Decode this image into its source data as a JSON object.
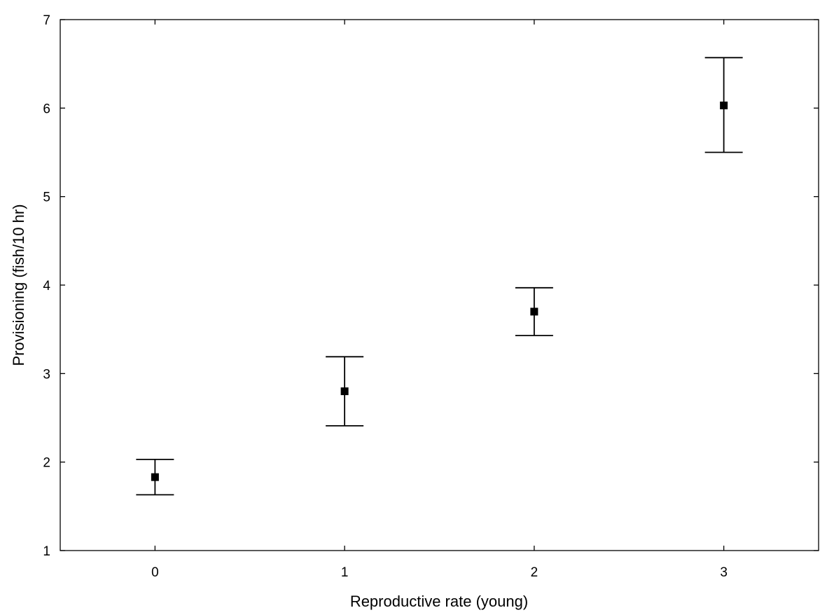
{
  "chart_data": {
    "type": "scatter",
    "title": "",
    "xlabel": "Reproductive rate (young)",
    "ylabel": "Provisioning (fish/10 hr)",
    "x_ticks": [
      "0",
      "1",
      "2",
      "3"
    ],
    "y_ticks": [
      "1",
      "2",
      "3",
      "4",
      "5",
      "6",
      "7"
    ],
    "xlim": [
      -0.5,
      3.5
    ],
    "ylim": [
      1,
      7
    ],
    "grid": false,
    "legend": "none",
    "series": [
      {
        "x": [
          0,
          1,
          2,
          3
        ],
        "y": [
          1.83,
          2.8,
          3.7,
          6.03
        ],
        "error_low": [
          1.63,
          2.41,
          3.43,
          5.5
        ],
        "error_high": [
          2.03,
          3.19,
          3.97,
          6.57
        ]
      }
    ]
  }
}
